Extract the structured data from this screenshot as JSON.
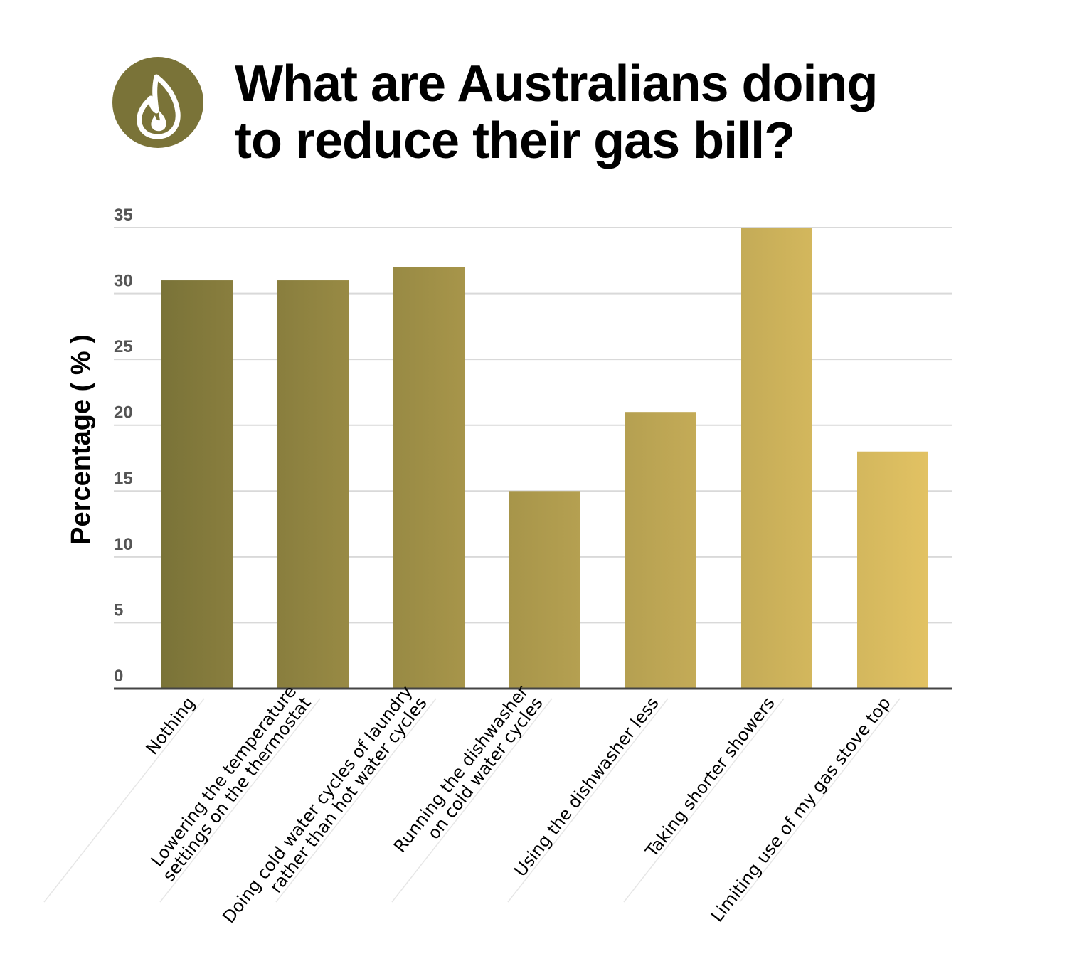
{
  "header": {
    "title_line1": "What are Australians doing",
    "title_line2": "to reduce their gas bill?",
    "icon": "flame-icon",
    "icon_color": "#7a7338"
  },
  "chart_data": {
    "type": "bar",
    "title": "What are Australians doing to reduce their gas bill?",
    "ylabel": "Percentage ( % )",
    "xlabel": "",
    "ylim": [
      0,
      35
    ],
    "yticks": [
      0,
      5,
      10,
      15,
      20,
      25,
      30,
      35
    ],
    "grid": true,
    "legend": "none",
    "categories": [
      [
        "Nothing"
      ],
      [
        "Lowering the temperature",
        "settings on the thermostat"
      ],
      [
        "Doing cold water cycles of laundry",
        "rather than hot water cycles"
      ],
      [
        "Running the dishwasher",
        "on cold water cycles"
      ],
      [
        "Using the dishwasher less"
      ],
      [
        "Taking shorter showers"
      ],
      [
        "Limiting use of my gas stove top"
      ]
    ],
    "values": [
      31,
      31,
      32,
      15,
      21,
      35,
      18
    ],
    "bar_color_start": "#7a7338",
    "bar_color_end": "#e2c263"
  }
}
